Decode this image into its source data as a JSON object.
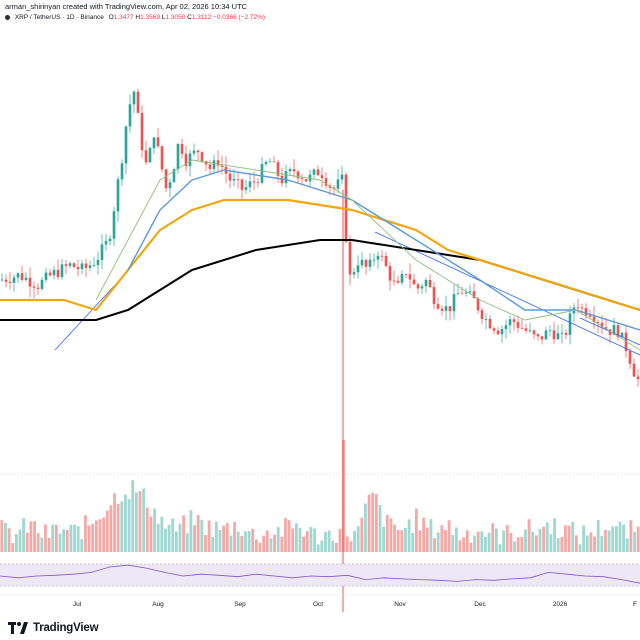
{
  "header": {
    "credit": "arman_shirinyan created with TradingView.com, Apr 02, 2026 10:34 UTC",
    "symbol": "XRP / TetherUS · 1D · Binance",
    "open_label": "O",
    "open": "1.3477",
    "high_label": "H",
    "high": "1.3569",
    "low_label": "L",
    "low": "1.3050",
    "close_label": "C",
    "close": "1.3112",
    "change": "−0.0366 (−2.72%)"
  },
  "footer": {
    "brand": "TradingView",
    "logo_icon": "tradingview-logo-icon"
  },
  "colors": {
    "up": "#26a69a",
    "down": "#ef5350",
    "ma200": "#000000",
    "ma100": "#f2a60c",
    "ma50": "#5b9bd5",
    "ma20": "#8fbf7f",
    "vol_up": "#9ed8d1",
    "vol_down": "#f5a9a6",
    "rsi_line": "#7e57c2",
    "rsi_band": "#ede7f6",
    "trendline": "#2962ff"
  },
  "chart_data": {
    "type": "candlestick",
    "title": "",
    "price_axis": "hidden",
    "x_tick_labels": [
      "Jul",
      "Aug",
      "Sep",
      "Oct",
      "Nov",
      "Dec",
      "2026",
      "F"
    ],
    "legend": "none",
    "grid": false,
    "price_series": [
      [
        0.0,
        0.4545
      ],
      [
        0.03,
        0.4659
      ],
      [
        0.06,
        0.4432
      ],
      [
        0.08,
        0.4659
      ],
      [
        0.11,
        0.4886
      ],
      [
        0.13,
        0.4773
      ],
      [
        0.15,
        0.5
      ],
      [
        0.17,
        0.5455
      ],
      [
        0.18,
        0.6364
      ],
      [
        0.19,
        0.7273
      ],
      [
        0.2,
        0.8409
      ],
      [
        0.21,
        0.8864
      ],
      [
        0.22,
        0.7727
      ],
      [
        0.23,
        0.7045
      ],
      [
        0.24,
        0.7955
      ],
      [
        0.25,
        0.7273
      ],
      [
        0.26,
        0.6591
      ],
      [
        0.27,
        0.7045
      ],
      [
        0.28,
        0.7727
      ],
      [
        0.29,
        0.7273
      ],
      [
        0.31,
        0.75
      ],
      [
        0.33,
        0.7045
      ],
      [
        0.34,
        0.7273
      ],
      [
        0.36,
        0.6818
      ],
      [
        0.38,
        0.6591
      ],
      [
        0.4,
        0.6818
      ],
      [
        0.42,
        0.7273
      ],
      [
        0.44,
        0.6818
      ],
      [
        0.46,
        0.7045
      ],
      [
        0.48,
        0.6818
      ],
      [
        0.5,
        0.7045
      ],
      [
        0.52,
        0.6591
      ],
      [
        0.535,
        0.6818
      ],
      [
        0.545,
        0.4545
      ],
      [
        0.56,
        0.5
      ],
      [
        0.575,
        0.4773
      ],
      [
        0.59,
        0.5227
      ],
      [
        0.605,
        0.4773
      ],
      [
        0.62,
        0.4318
      ],
      [
        0.635,
        0.4773
      ],
      [
        0.65,
        0.4318
      ],
      [
        0.665,
        0.4545
      ],
      [
        0.68,
        0.4091
      ],
      [
        0.7,
        0.3864
      ],
      [
        0.72,
        0.4318
      ],
      [
        0.74,
        0.4091
      ],
      [
        0.76,
        0.3636
      ],
      [
        0.78,
        0.3409
      ],
      [
        0.8,
        0.3636
      ],
      [
        0.82,
        0.3409
      ],
      [
        0.84,
        0.3182
      ],
      [
        0.86,
        0.3409
      ],
      [
        0.88,
        0.3182
      ],
      [
        0.89,
        0.3636
      ],
      [
        0.9,
        0.4091
      ],
      [
        0.91,
        0.3864
      ],
      [
        0.92,
        0.3864
      ],
      [
        0.935,
        0.3636
      ],
      [
        0.95,
        0.3409
      ],
      [
        0.965,
        0.3409
      ],
      [
        0.98,
        0.2955
      ],
      [
        0.995,
        0.2273
      ]
    ],
    "series": [
      {
        "name": "",
        "type": "line",
        "color_key": "ma200",
        "points": [
          [
            0.0,
            0.3636
          ],
          [
            0.15,
            0.3636
          ],
          [
            0.2,
            0.3864
          ],
          [
            0.3,
            0.4773
          ],
          [
            0.4,
            0.5227
          ],
          [
            0.5,
            0.5455
          ],
          [
            0.55,
            0.5455
          ],
          [
            0.65,
            0.5227
          ],
          [
            0.75,
            0.5
          ],
          [
            0.85,
            0.4545
          ],
          [
            0.95,
            0.4091
          ],
          [
            1.0,
            0.3864
          ]
        ]
      },
      {
        "name": "",
        "type": "line",
        "color_key": "ma100",
        "points": [
          [
            0.0,
            0.4091
          ],
          [
            0.1,
            0.4091
          ],
          [
            0.15,
            0.3864
          ],
          [
            0.2,
            0.4773
          ],
          [
            0.25,
            0.5682
          ],
          [
            0.3,
            0.6136
          ],
          [
            0.35,
            0.6364
          ],
          [
            0.45,
            0.6364
          ],
          [
            0.55,
            0.6136
          ],
          [
            0.65,
            0.5682
          ],
          [
            0.7,
            0.5227
          ],
          [
            0.8,
            0.4773
          ],
          [
            0.9,
            0.4318
          ],
          [
            1.0,
            0.3864
          ]
        ]
      },
      {
        "name": "",
        "type": "line",
        "color_key": "ma50",
        "points": [
          [
            0.2,
            0.4773
          ],
          [
            0.25,
            0.6136
          ],
          [
            0.3,
            0.6818
          ],
          [
            0.35,
            0.7045
          ],
          [
            0.45,
            0.6818
          ],
          [
            0.55,
            0.6364
          ],
          [
            0.65,
            0.5455
          ],
          [
            0.75,
            0.4545
          ],
          [
            0.82,
            0.3864
          ],
          [
            0.9,
            0.3864
          ],
          [
            1.0,
            0.3409
          ]
        ]
      },
      {
        "name": "",
        "type": "line",
        "color_key": "ma20",
        "points": [
          [
            0.15,
            0.4091
          ],
          [
            0.2,
            0.5455
          ],
          [
            0.25,
            0.6818
          ],
          [
            0.3,
            0.7273
          ],
          [
            0.4,
            0.7045
          ],
          [
            0.5,
            0.6818
          ],
          [
            0.55,
            0.6364
          ],
          [
            0.65,
            0.5
          ],
          [
            0.75,
            0.4091
          ],
          [
            0.82,
            0.3636
          ],
          [
            0.9,
            0.3864
          ],
          [
            1.0,
            0.2955
          ]
        ]
      }
    ],
    "volume_series": [
      0.2,
      0.1,
      0.3,
      0.1,
      0.2,
      0.15,
      0.3,
      0.6,
      0.9,
      1.0,
      0.7,
      0.3,
      0.2,
      0.4,
      0.25,
      0.2,
      0.3,
      0.1,
      0.15,
      0.2,
      0.3,
      0.1,
      0.1,
      0.2,
      0.1,
      0.9,
      0.3,
      0.2,
      0.4,
      0.2,
      0.3,
      0.1,
      0.2,
      0.15,
      0.1,
      0.2,
      0.2,
      0.3,
      0.2,
      0.1,
      0.2,
      0.3,
      0.15,
      0.2
    ],
    "rsi_series": [
      0.5,
      0.45,
      0.5,
      0.52,
      0.55,
      0.6,
      0.75,
      0.8,
      0.72,
      0.6,
      0.5,
      0.55,
      0.52,
      0.48,
      0.55,
      0.5,
      0.45,
      0.5,
      0.48,
      0.52,
      0.4,
      0.45,
      0.42,
      0.4,
      0.38,
      0.35,
      0.4,
      0.38,
      0.42,
      0.45,
      0.6,
      0.55,
      0.5,
      0.48,
      0.4,
      0.3
    ]
  }
}
